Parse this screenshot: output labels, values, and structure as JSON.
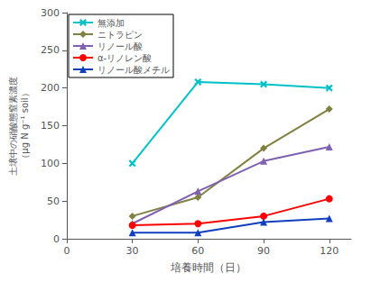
{
  "chart_data": {
    "type": "line",
    "x_label": "培養時間（日）",
    "y_label": "土壌中の硝酸態窒素濃度\n（μg N g⁻¹ soil）",
    "x": [
      30,
      60,
      90,
      120
    ],
    "series": [
      {
        "name": "無添加",
        "values": [
          100,
          208,
          205,
          200
        ],
        "color": "#00C0C8",
        "marker": "x"
      },
      {
        "name": "ニトラピン",
        "values": [
          30,
          55,
          120,
          172
        ],
        "color": "#808040",
        "marker": "diamond"
      },
      {
        "name": "リノール酸",
        "values": [
          20,
          63,
          103,
          122
        ],
        "color": "#8060B0",
        "marker": "triangle"
      },
      {
        "name": "α-リノレン酸",
        "values": [
          18,
          20,
          30,
          53
        ],
        "color": "#FF0000",
        "marker": "circle"
      },
      {
        "name": "リノール酸メチル",
        "values": [
          8,
          8,
          22,
          27
        ],
        "color": "#1040C0",
        "marker": "triangle"
      }
    ],
    "xlim": [
      0,
      130
    ],
    "ylim": [
      0,
      300
    ],
    "xticks": [
      0,
      30,
      60,
      90,
      120
    ],
    "yticks": [
      0,
      50,
      100,
      150,
      200,
      250,
      300
    ],
    "grid": false,
    "legend": "upper left"
  }
}
